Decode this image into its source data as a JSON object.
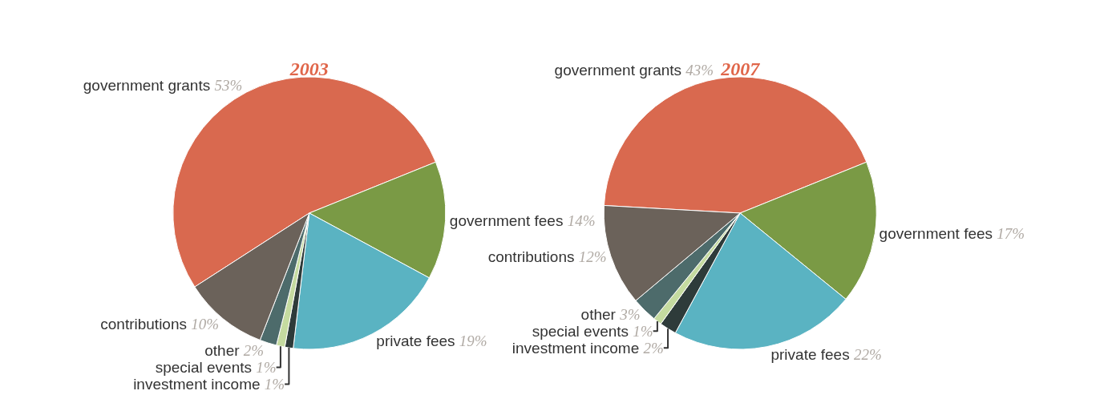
{
  "chart_data": [
    {
      "type": "pie",
      "title": "2003",
      "categories": [
        "government grants",
        "government fees",
        "private fees",
        "investment income",
        "special events",
        "other",
        "contributions"
      ],
      "values": [
        53,
        14,
        19,
        1,
        1,
        2,
        10
      ],
      "value_labels": [
        "53%",
        "14%",
        "19%",
        "1%",
        "1%",
        "2%",
        "10%"
      ],
      "colors": [
        "#d9694f",
        "#7a9a45",
        "#5ab3c2",
        "#2e3b3a",
        "#c5dba0",
        "#4d6b6b",
        "#6b625a"
      ],
      "legend": false
    },
    {
      "type": "pie",
      "title": "2007",
      "categories": [
        "government grants",
        "government fees",
        "private fees",
        "investment income",
        "special events",
        "other",
        "contributions"
      ],
      "values": [
        43,
        17,
        22,
        2,
        1,
        3,
        12
      ],
      "value_labels": [
        "43%",
        "17%",
        "22%",
        "2%",
        "1%",
        "3%",
        "12%"
      ],
      "colors": [
        "#d9694f",
        "#7a9a45",
        "#5ab3c2",
        "#2e3b3a",
        "#c5dba0",
        "#4d6b6b",
        "#6b625a"
      ],
      "legend": false
    }
  ]
}
